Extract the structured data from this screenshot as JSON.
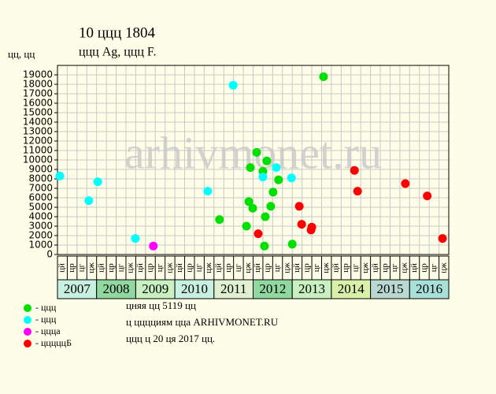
{
  "chart_data": {
    "type": "scatter",
    "title": "10 ццц 1804",
    "subtitle": "ццц Ag, ццц F.",
    "y_label": "цц, цц",
    "watermark": "arhivmonet.ru",
    "xlim": [
      2007,
      2017
    ],
    "ylim": [
      0,
      20000
    ],
    "yticks": [
      0,
      1000,
      2000,
      3000,
      4000,
      5000,
      6000,
      7000,
      8000,
      9000,
      10000,
      11000,
      12000,
      13000,
      14000,
      15000,
      16000,
      17000,
      18000,
      19000
    ],
    "years": [
      "2007",
      "2008",
      "2009",
      "2010",
      "2011",
      "2012",
      "2013",
      "2014",
      "2015",
      "2016"
    ],
    "year_colors": [
      "#c8f0e0",
      "#90d8a0",
      "#c8f0c0",
      "#c8f0e0",
      "#e0f0d0",
      "#90d8a0",
      "#c8f0c0",
      "#d8f0a8",
      "#b8d8d0",
      "#a8e0d8"
    ],
    "quarters": [
      "цй",
      "цр",
      "цг",
      "цж"
    ],
    "grid": true,
    "series": [
      {
        "name": "- ццц",
        "color": "#00e000",
        "x": [
          2013.8,
          2011.14,
          2011.83,
          2011.89,
          2011.99,
          2011.93,
          2012.09,
          2012.25,
          2012.35,
          2012.31,
          2012.29,
          2012.45,
          2012.51,
          2012.65,
          2013.0
        ],
        "values": [
          18800,
          3700,
          3000,
          5600,
          4900,
          9200,
          10800,
          8800,
          9900,
          4000,
          900,
          5100,
          6600,
          7900,
          1100
        ]
      },
      {
        "name": "- ццц",
        "color": "#00ffff",
        "x": [
          2007.06,
          2007.8,
          2008.03,
          2008.99,
          2010.84,
          2011.49,
          2012.25,
          2012.59,
          2012.98
        ],
        "values": [
          8300,
          5700,
          7700,
          1700,
          6700,
          17900,
          8200,
          9200,
          8100
        ]
      },
      {
        "name": "- ццца",
        "color": "#ff00ff",
        "x": [
          2009.45
        ],
        "values": [
          900
        ]
      },
      {
        "name": "- цццццБ",
        "color": "#ff0000",
        "x": [
          2012.13,
          2013.18,
          2013.24,
          2013.48,
          2013.5,
          2014.59,
          2014.67,
          2015.89,
          2016.45,
          2016.84
        ],
        "values": [
          2200,
          5100,
          3200,
          2600,
          2900,
          8900,
          6700,
          7500,
          6200,
          1700
        ]
      }
    ],
    "notes": [
      "цняя цц 5119 цц",
      "ц цццциям цца ARHIVMONET.RU",
      "ццц ц 20 ця 2017 цц."
    ]
  }
}
